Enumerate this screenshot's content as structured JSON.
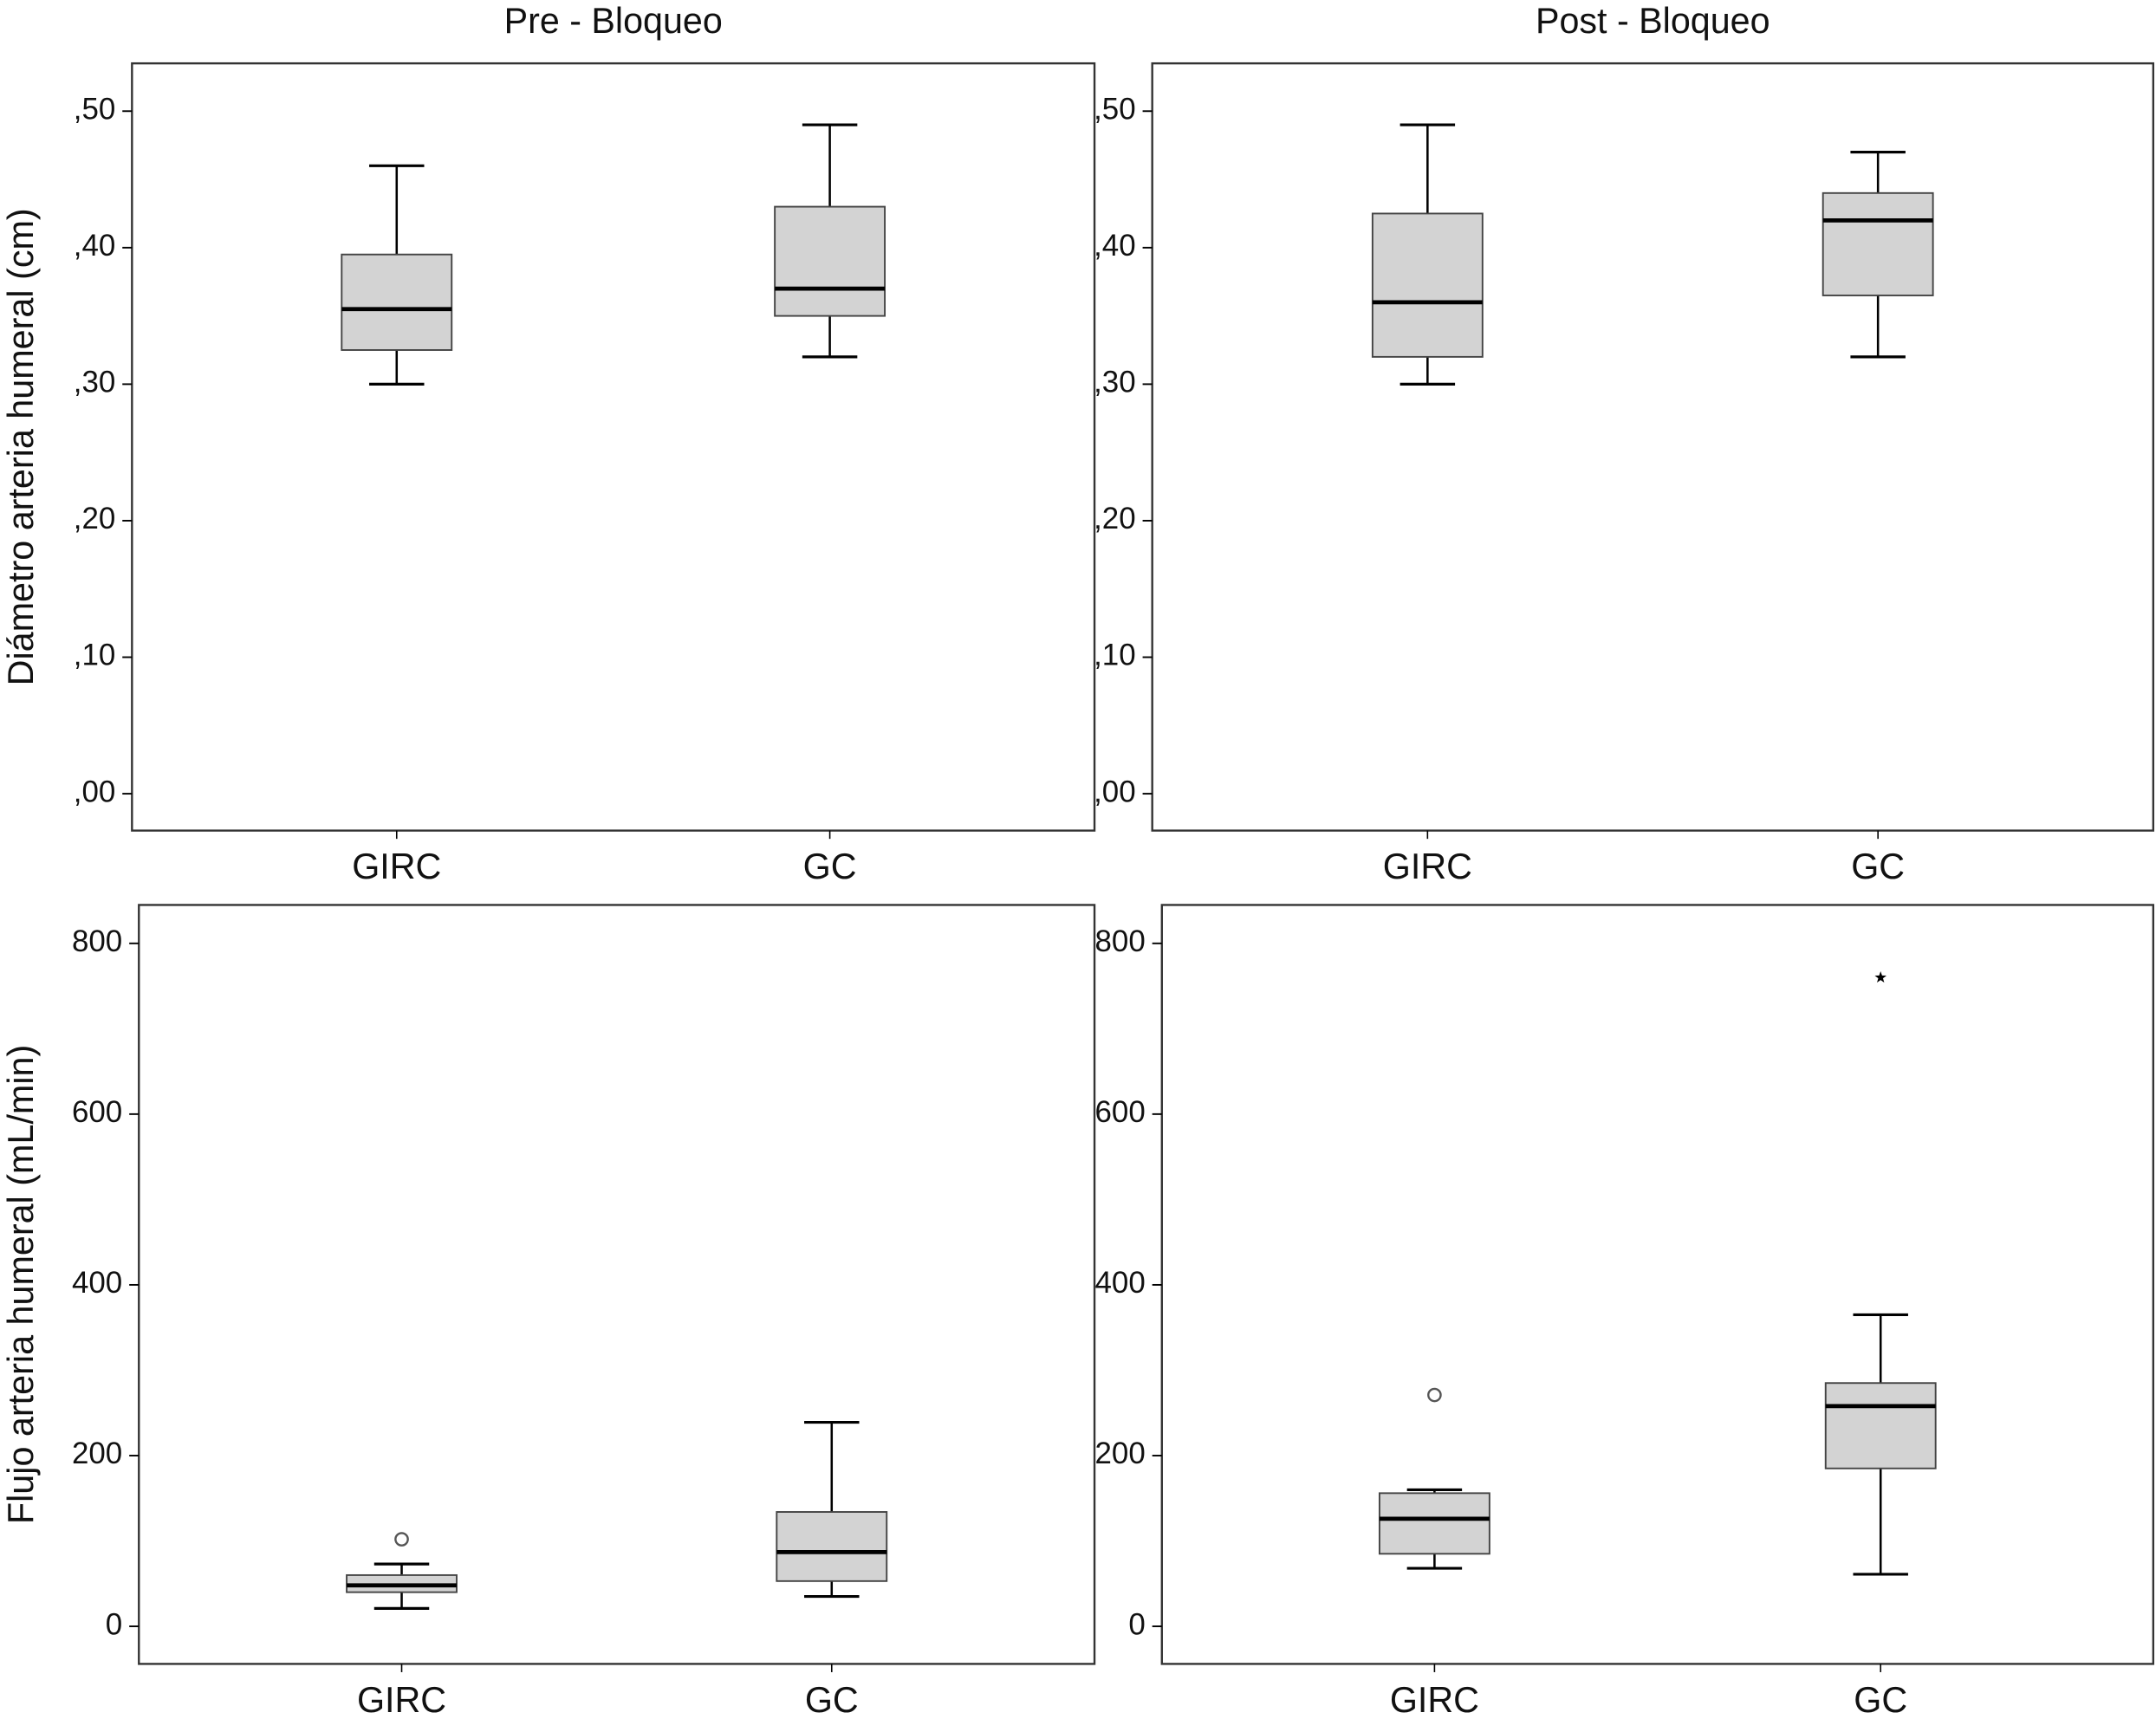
{
  "chart_data": [
    {
      "type": "box",
      "title": "Pre - Bloqueo",
      "ylabel": "Diámetro arteria humeral (cm)",
      "categories": [
        "GIRC",
        "GC"
      ],
      "boxes": [
        {
          "min": 0.3,
          "q1": 0.325,
          "median": 0.355,
          "q3": 0.395,
          "max": 0.46,
          "outliers": [],
          "extremes": []
        },
        {
          "min": 0.32,
          "q1": 0.35,
          "median": 0.37,
          "q3": 0.43,
          "max": 0.49,
          "outliers": [],
          "extremes": []
        }
      ],
      "color": "#d3d3d3",
      "ylim": [
        -0.027,
        0.535
      ],
      "yticks": [
        {
          "value": 0,
          "label": ",00"
        },
        {
          "value": 0.1,
          "label": ",10"
        },
        {
          "value": 0.2,
          "label": ",20"
        },
        {
          "value": 0.3,
          "label": ",30"
        },
        {
          "value": 0.4,
          "label": ",40"
        },
        {
          "value": 0.5,
          "label": ",50"
        }
      ]
    },
    {
      "type": "box",
      "title": "Post - Bloqueo",
      "categories": [
        "GIRC",
        "GC"
      ],
      "boxes": [
        {
          "min": 0.3,
          "q1": 0.32,
          "median": 0.36,
          "q3": 0.425,
          "max": 0.49,
          "outliers": [],
          "extremes": []
        },
        {
          "min": 0.32,
          "q1": 0.365,
          "median": 0.42,
          "q3": 0.44,
          "max": 0.47,
          "outliers": [],
          "extremes": []
        }
      ],
      "color": "#d3d3d3",
      "ylim": [
        -0.027,
        0.535
      ],
      "yticks": [
        {
          "value": 0,
          "label": ",00"
        },
        {
          "value": 0.1,
          "label": ",10"
        },
        {
          "value": 0.2,
          "label": ",20"
        },
        {
          "value": 0.3,
          "label": ",30"
        },
        {
          "value": 0.4,
          "label": ",40"
        },
        {
          "value": 0.5,
          "label": ",50"
        }
      ]
    },
    {
      "type": "box",
      "ylabel": "Flujo arteria humeral (mL/min)",
      "categories": [
        "GIRC",
        "GC"
      ],
      "boxes": [
        {
          "min": 21,
          "q1": 40,
          "median": 48,
          "q3": 60,
          "max": 73,
          "outliers": [
            102
          ],
          "extremes": []
        },
        {
          "min": 35,
          "q1": 53,
          "median": 87,
          "q3": 134,
          "max": 239,
          "outliers": [],
          "extremes": []
        }
      ],
      "color": "#d3d3d3",
      "ylim": [
        -44,
        845
      ],
      "yticks": [
        0,
        200,
        400,
        600,
        800
      ]
    },
    {
      "type": "box",
      "categories": [
        "GIRC",
        "GC"
      ],
      "boxes": [
        {
          "min": 68,
          "q1": 85,
          "median": 126,
          "q3": 156,
          "max": 160,
          "outliers": [
            271
          ],
          "extremes": []
        },
        {
          "min": 61,
          "q1": 185,
          "median": 258,
          "q3": 285,
          "max": 365,
          "outliers": [],
          "extremes": [
            760
          ]
        }
      ],
      "color": "#d3d3d3",
      "ylim": [
        -44,
        845
      ],
      "yticks": [
        0,
        200,
        400,
        600,
        800
      ]
    }
  ]
}
